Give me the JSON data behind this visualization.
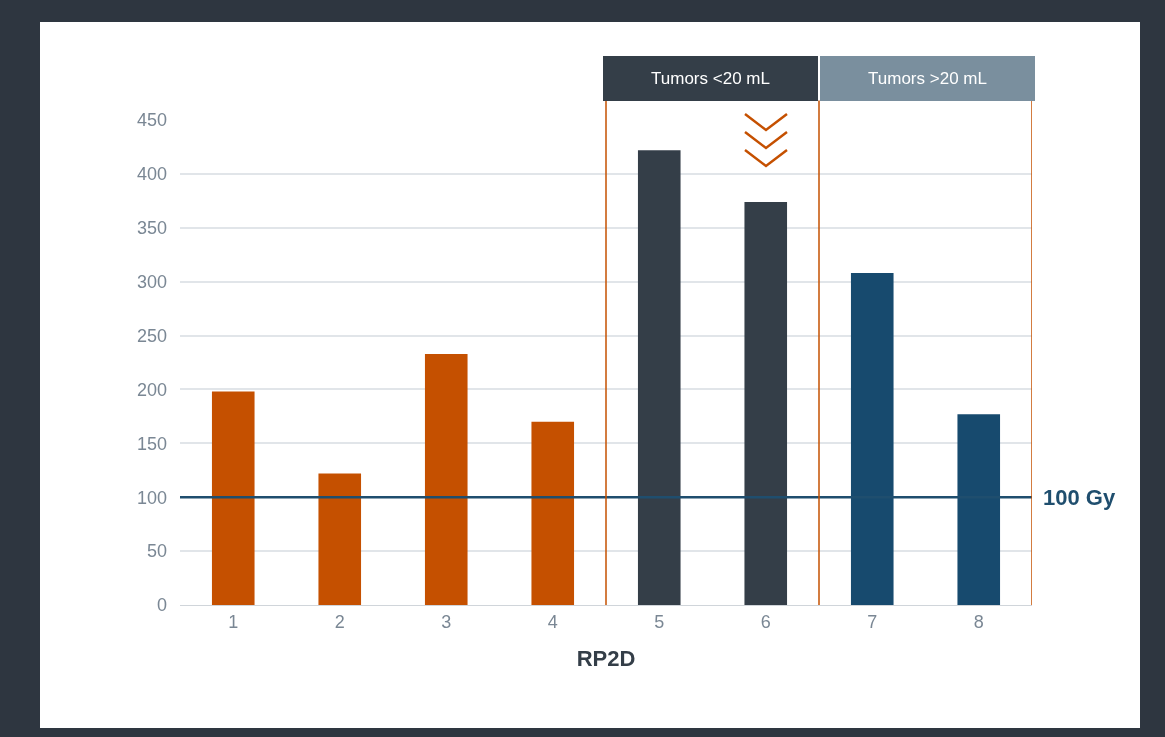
{
  "chart_data": {
    "type": "bar",
    "xlabel": "RP2D",
    "x": [
      1,
      2,
      3,
      4,
      5,
      6,
      7,
      8
    ],
    "values": [
      198,
      122,
      233,
      170,
      422,
      374,
      308,
      177
    ],
    "colors": [
      "#c55000",
      "#c55000",
      "#c55000",
      "#c55000",
      "#343e48",
      "#343e48",
      "#174a6e",
      "#174a6e"
    ],
    "xlim": [
      0.5,
      8.5
    ],
    "xticks": [
      1,
      2,
      3,
      4,
      5,
      6,
      7,
      8
    ],
    "ylim": [
      0,
      450
    ],
    "yticks": [
      0,
      50,
      100,
      150,
      200,
      250,
      300,
      350,
      400,
      450
    ],
    "grid": "y",
    "ref_lines": [
      {
        "axis": "y",
        "value": 100,
        "label": "100 Gy",
        "color": "#1f4e6e"
      },
      {
        "axis": "x",
        "value": 4.5,
        "color": "#c55000"
      },
      {
        "axis": "x",
        "value": 6.5,
        "color": "#c55000"
      },
      {
        "axis": "x",
        "value": 8.5,
        "color": "#c55000"
      }
    ],
    "annotations": [
      "Tumors <20 mL",
      "Tumors >20 mL"
    ]
  }
}
